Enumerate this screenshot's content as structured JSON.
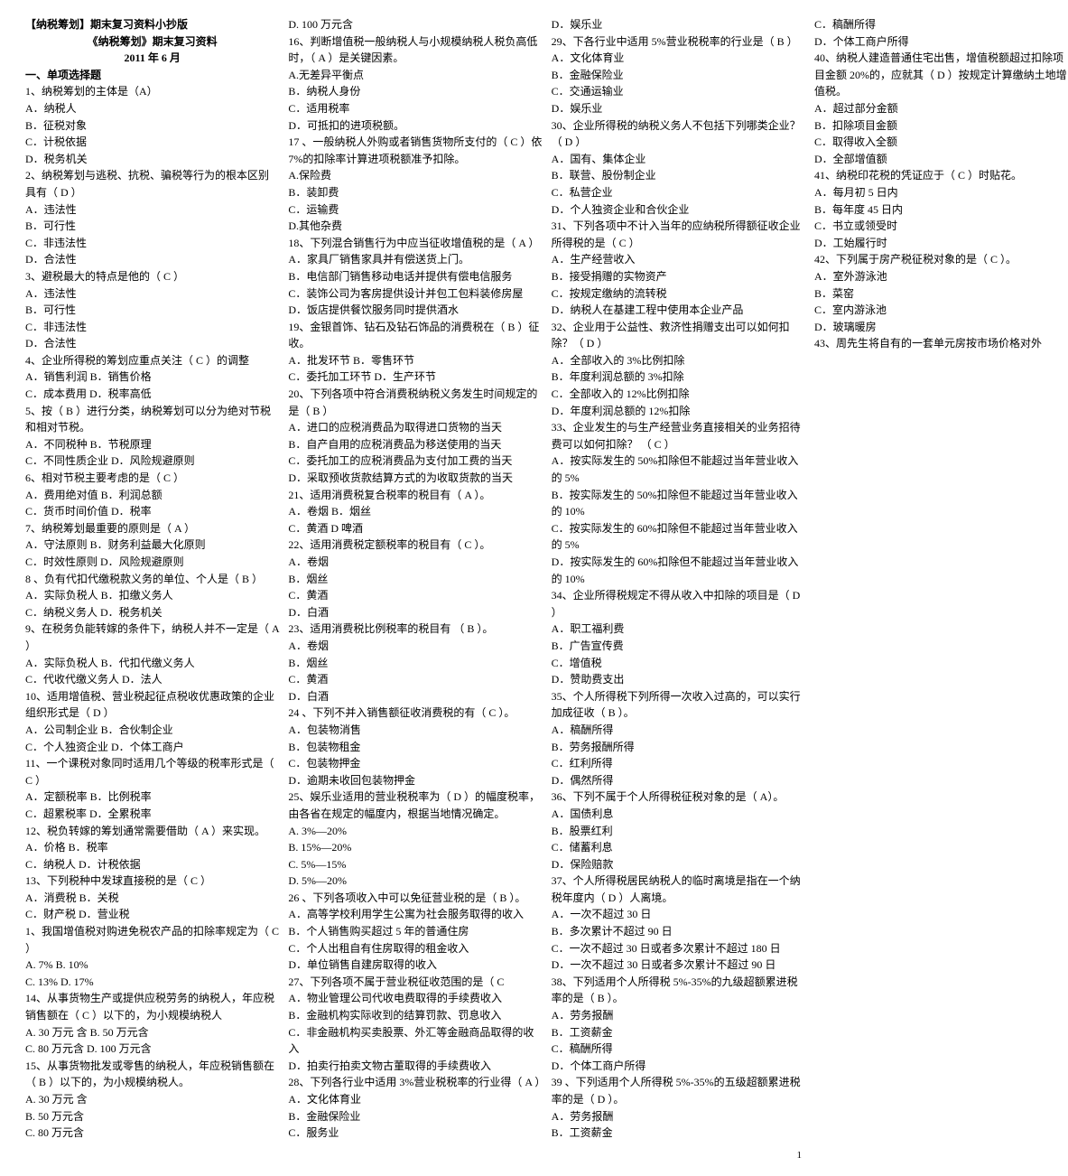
{
  "header": {
    "line1": "【纳税筹划】期末复习资料小抄版",
    "line2": "《纳税筹划》期末复习资料",
    "line3": "2011 年 6 月"
  },
  "section1_title": "一、单项选择题",
  "page_number": "1",
  "col1": [
    "1、纳税筹划的主体是（A）",
    "A．纳税人",
    "B．征税对象",
    "C．计税依据",
    "D．税务机关",
    "2、纳税筹划与逃税、抗税、骗税等行为的根本区别具有（   D   ）",
    "A．违法性",
    "B．可行性",
    "C．非违法性",
    "D．合法性",
    "3、避税最大的特点是他的（  C  ）",
    "A．违法性",
    "B．可行性",
    "C．非违法性",
    "D．合法性",
    "4、企业所得税的筹划应重点关注（  C     ）的调整",
    "A．销售利润 B．销售价格",
    "C．成本费用 D．税率高低",
    "5、按（  B   ）进行分类，纳税筹划可以分为绝对节税和相对节税。",
    "A．不同税种 B．节税原理",
    "C．不同性质企业 D．风险规避原则",
    "6、相对节税主要考虑的是（   C   ）",
    "A．费用绝对值 B．利润总额",
    "C．货币时间价值 D．税率",
    "7、纳税筹划最重要的原则是（     A   ）",
    "A．守法原则 B．财务利益最大化原则",
    "C．时效性原则 D．风险规避原则",
    "8 、负有代扣代缴税款义务的单位、个人是（  B  ）",
    "A．实际负税人 B．扣缴义务人",
    "C．纳税义务人 D．税务机关",
    "9、在税务负能转嫁的条件下，纳税人并不一定是（  A   ）",
    "A．实际负税人 B．代扣代缴义务人",
    "C．代收代缴义务人 D．法人",
    "10、适用增值税、营业税起征点税收优惠政策的企业组织形式是（   D  ）",
    "A．公司制企业 B．合伙制企业",
    "C．个人独资企业 D．个体工商户",
    "11、一个课税对象同时适用几个等级的税率形式是（ C   ）",
    "A．定额税率 B．比例税率",
    "C．超累税率 D．全累税率",
    "12、税负转嫁的筹划通常需要借助（  A   ）来实现。",
    "A．价格 B．税率",
    "C．纳税人 D．计税依据",
    "13、下列税种中发球直接税的是（    C   ）",
    "A．消费税 B．关税",
    "C．财产税 D．营业税",
    "1、我国增值税对购进免税农产品的扣除率规定为（ C    ）",
    "A. 7%         B. 10%",
    "C. 13%        D. 17%",
    "14、从事货物生产或提供应税劳务的纳税人，年应税销售额在（  C  ）以下的，为小规模纳税人",
    "A. 30 万元 含    B. 50 万元含",
    "C. 80 万元含       D. 100 万元含",
    "15、从事货物批发或零售的纳税人，年应税销售额在（    B    ）以下的，为小规模纳税人。",
    "A. 30 万元  含",
    "B. 50 万元含",
    "C. 80 万元含",
    "D. 100 万元含",
    "16、判断增值税一般纳税人与小规模纳税人税负高低时，（   A     ）是关键因素。",
    "A.无差异平衡点",
    "B．纳税人身份",
    "C．适用税率",
    "D．可抵扣的进项税额。"
  ],
  "col2": [
    "17 、一般纳税人外购或者销售货物所支付的（  C  ）依 7%的扣除率计算进项税额准予扣除。",
    "A.保险费",
    "B．装卸费",
    "C．运输费",
    "D.其他杂费",
    "18、下列混合销售行为中应当征收增值税的是（  A  ）",
    "A．家具厂销售家具并有偿送货上门。",
    "B．电信部门销售移动电话并提供有偿电信服务",
    "C．装饰公司为客房提供设计并包工包料装修房屋",
    "D．饭店提供餐饮服务同时提供酒水",
    "19、金银首饰、钻石及钻石饰品的消费税在（   B   ）征收。",
    "A．批发环节 B．零售环节",
    "C．委托加工环节 D．生产环节",
    "20、下列各项中符合消费税纳税义务发生时间规定的是（ B   ）",
    "A．进口的应税消费品为取得进口货物的当天",
    "B．自产自用的应税消费品为移送使用的当天",
    "C．委托加工的应税消费品为支付加工费的当天",
    "D．采取预收货款结算方式的为收取货款的当天",
    "21、适用消费税复合税率的税目有（  A  ）。",
    "A．卷烟    B．烟丝",
    "C．黄酒   D    啤酒",
    "22、适用消费税定额税率的税目有（ C   ）。",
    "A．卷烟",
    "B．烟丝",
    "C．黄酒",
    "D．白酒",
    "23、适用消费税比例税率的税目有   （  B  ）。",
    "A．卷烟",
    "B．烟丝",
    "C．黄酒",
    "D．白酒",
    "24 、下列不并入销售额征收消费税的有（   C   ）。",
    "A．包装物消售",
    "B．包装物租金",
    "C．包装物押金",
    "D．逾期未收回包装物押金",
    "25、娱乐业适用的营业税税率为（  D  ）的幅度税率，由各省在规定的幅度内，根据当地情况确定。",
    "A. 3%—20%",
    "B. 15%—20%",
    "C. 5%—15%",
    "D. 5%—20%",
    "26 、下列各项收入中可以免征营业税的是（   B  ）。",
    "A．高等学校利用学生公寓为社会服务取得的收入",
    "B．个人销售购买超过 5 年的普通住房",
    "C．个人出租自有住房取得的租金收入",
    "D．单位销售自建房取得的收入",
    "27、下列各项不属于营业税征收范围的是（  C",
    "A．物业管理公司代收电费取得的手续费收入",
    "B．金融机构实际收到的结算罚款、罚息收入",
    "C．非金融机构买卖股票、外汇等金融商品取得的收入",
    "D．拍卖行拍卖文物古董取得的手续费收入",
    "28、下列各行业中适用 3%营业税税率的行业得（    A   ）",
    "A．文化体育业",
    "B．金融保险业",
    "C．服务业",
    "D．娱乐业",
    "29、下各行业中适用 5%营业税税率的行业是（   B   ）",
    "A．文化体育业",
    "B．金融保险业",
    "C．交通运输业",
    "D．娱乐业",
    "30、企业所得税的纳税义务人不包括下列哪类企业？ （  D  ）",
    "A．国有、集体企业",
    "B．联营、股份制企业"
  ],
  "col3": [
    "C．私营企业",
    "D．个人独资企业和合伙企业",
    "31、下列各项中不计入当年的应纳税所得额征收企业所得税的是（   C  ）",
    "A．生产经营收入",
    "B．接受捐赠的实物资产",
    "C．按规定缴纳的流转税",
    "D．纳税人在基建工程中使用本企业产品",
    "32、企业用于公益性、救济性捐赠支出可以如何扣除？（  D  ）",
    "A．全部收入的 3%比例扣除",
    "B．年度利润总额的 3%扣除",
    "C．全部收入的 12%比例扣除",
    "D．年度利润总额的 12%扣除",
    "33、企业发生的与生产经营业务直接相关的业务招待费可以如何扣除？  （  C  ）",
    "A．按实际发生的 50%扣除但不能超过当年营业收入的 5%",
    "B．按实际发生的 50%扣除但不能超过当年营业收入的 10%",
    "C．按实际发生的 60%扣除但不能超过当年营业收入的 5%",
    "D．按实际发生的 60%扣除但不能超过当年营业收入的 10%",
    "34、企业所得税规定不得从收入中扣除的项目是（  D  ）",
    "A．职工福利费",
    "B．广告宣传费",
    "C．增值税",
    "D．赞助费支出",
    "35、个人所得税下列所得一次收入过高的，可以实行加成征收（  B  ）。",
    "A．稿酬所得",
    "B．劳务报酬所得",
    "C．红利所得",
    "D．偶然所得",
    "36、下列不属于个人所得税征税对象的是（ A）。",
    "A．国债利息",
    "B．股票红利",
    "C．储蓄利息",
    "D．保险赔款",
    "37、个人所得税居民纳税人的临时离境是指在一个纳税年度内（   D    ）人离境。",
    "A．一次不超过 30 日",
    "B．多次累计不超过 90 日",
    "C．一次不超过 30 日或者多次累计不超过 180 日",
    "D．一次不超过 30 日或者多次累计不超过 90 日",
    "38、下列适用个人所得税 5%-35%的九级超额累进税率的是（  B   ）。",
    "A．劳务报酬",
    "B．工资薪金",
    "C．稿酬所得",
    "D．个体工商户所得",
    "39 、下列适用个人所得税 5%-35%的五级超额累进税率的是（     D     ）。",
    "A．劳务报酬",
    "B．工资薪金",
    "C．稿酬所得",
    "D．个体工商户所得",
    "40、纳税人建造普通住宅出售，增值税额超过扣除项目金额 20%的，应就其（     D   ）按规定计算缴纳土地增值税。",
    "A．超过部分金额",
    "B．扣除项目金额",
    "C．取得收入全额",
    "D．全部增值额",
    "41、纳税印花税的凭证应于（  C  ）时贴花。",
    "A．每月初 5 日内",
    "B．每年度 45 日内",
    "C．书立或领受时",
    "D．工始履行时",
    "42、下列属于房产税征税对象的是（  C  ）。",
    "A．室外游泳池",
    "B．菜窑",
    "C．室内游泳池",
    "D．玻璃暖房",
    "43、周先生将自有的一套单元房按市场价格对外"
  ]
}
